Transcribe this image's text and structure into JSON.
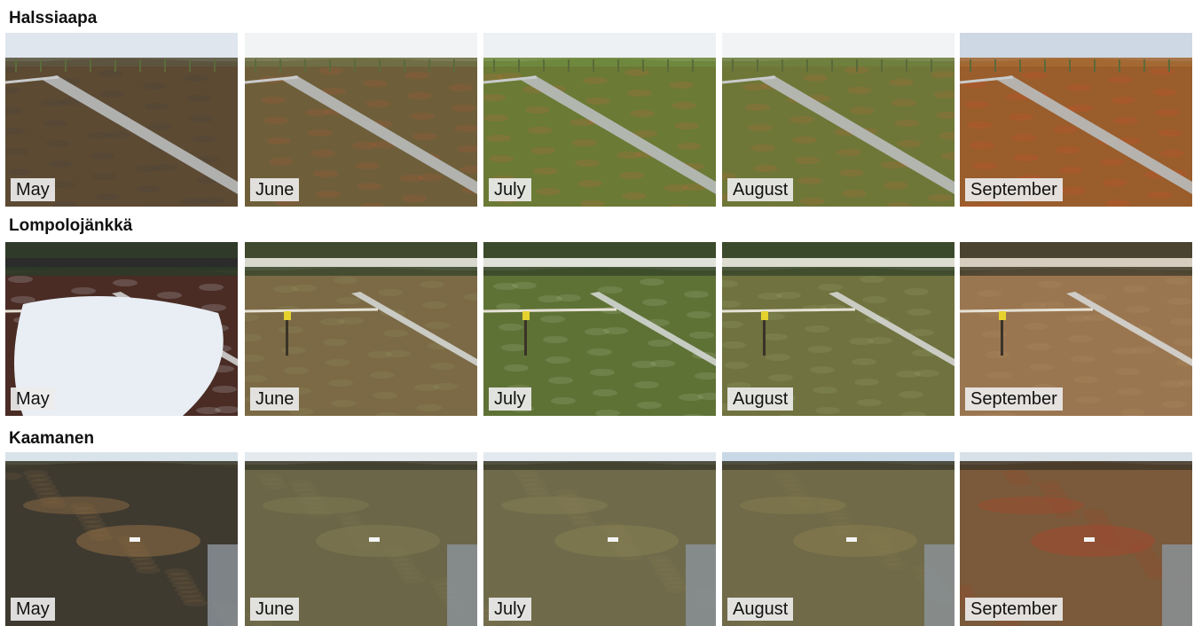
{
  "sites": [
    {
      "name": "Halssiaapa",
      "scene": "boardwalk",
      "photos": [
        {
          "month": "May",
          "sky": "#dfe6ee",
          "far": "#5c5540",
          "ground": "#5d4a33",
          "accent": "#3e4042",
          "snow": false
        },
        {
          "month": "June",
          "sky": "#f1f3f4",
          "far": "#6f7046",
          "ground": "#6e5f3a",
          "accent": "#c4583a",
          "snow": false
        },
        {
          "month": "July",
          "sky": "#eef1f3",
          "far": "#6f8a3e",
          "ground": "#6b7a35",
          "accent": "#d6663e",
          "snow": false
        },
        {
          "month": "August",
          "sky": "#f1f3f4",
          "far": "#6f803f",
          "ground": "#6f7738",
          "accent": "#c9623e",
          "snow": false
        },
        {
          "month": "September",
          "sky": "#cdd8e4",
          "far": "#a56a34",
          "ground": "#9a5d2c",
          "accent": "#e04b2f",
          "snow": false
        }
      ]
    },
    {
      "name": "Lompolojänkkä",
      "scene": "fen",
      "photos": [
        {
          "month": "May",
          "sky": "#2a2b2a",
          "far": "#2f3a28",
          "ground": "#4a2c25",
          "accent": "#e9eef4",
          "snow": true
        },
        {
          "month": "June",
          "sky": "#d8d8cf",
          "far": "#3f4a2e",
          "ground": "#7b6a45",
          "accent": "#9aa06a",
          "snow": false
        },
        {
          "month": "July",
          "sky": "#dfe2d9",
          "far": "#3a4a2a",
          "ground": "#5f7236",
          "accent": "#b7c7a0",
          "snow": false
        },
        {
          "month": "August",
          "sky": "#dcdcd0",
          "far": "#3c4a2c",
          "ground": "#70723f",
          "accent": "#a9b07e",
          "snow": false
        },
        {
          "month": "September",
          "sky": "#d6cdbf",
          "far": "#4a4330",
          "ground": "#9a7650",
          "accent": "#b9936a",
          "snow": false
        }
      ]
    },
    {
      "name": "Kaamanen",
      "scene": "hummocks",
      "photos": [
        {
          "month": "May",
          "sky": "#d9e3ea",
          "far": "#3d3a2c",
          "ground": "#3e3a30",
          "accent": "#8c6a44",
          "snow": false
        },
        {
          "month": "June",
          "sky": "#e5eaee",
          "far": "#3f3e2e",
          "ground": "#6b6647",
          "accent": "#7e7a52",
          "snow": false
        },
        {
          "month": "July",
          "sky": "#e3eaef",
          "far": "#3f3f2e",
          "ground": "#6f6a4a",
          "accent": "#857e54",
          "snow": false
        },
        {
          "month": "August",
          "sky": "#c9d8e6",
          "far": "#403f2f",
          "ground": "#706a48",
          "accent": "#867c4e",
          "snow": false
        },
        {
          "month": "September",
          "sky": "#d9e1e8",
          "far": "#473a2a",
          "ground": "#7a5a3a",
          "accent": "#9c4a2e",
          "snow": false
        }
      ]
    }
  ]
}
